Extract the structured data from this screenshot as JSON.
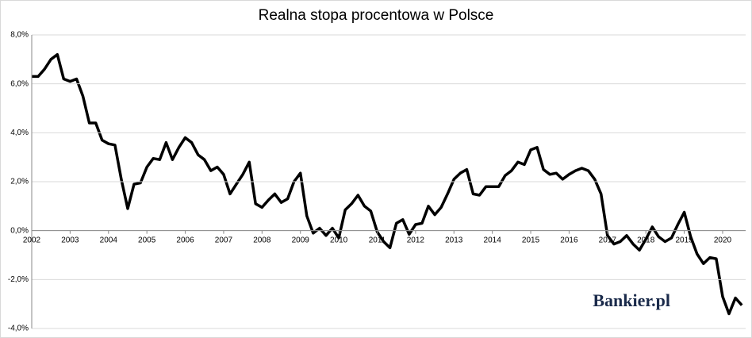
{
  "chart_data": {
    "type": "line",
    "title": "Realna stopa procentowa w Polsce",
    "watermark": "Bankier.pl",
    "x": [
      2002,
      2002.167,
      2002.333,
      2002.5,
      2002.667,
      2002.833,
      2003,
      2003.167,
      2003.333,
      2003.5,
      2003.667,
      2003.833,
      2004,
      2004.167,
      2004.333,
      2004.5,
      2004.667,
      2004.833,
      2005,
      2005.167,
      2005.333,
      2005.5,
      2005.667,
      2005.833,
      2006,
      2006.167,
      2006.333,
      2006.5,
      2006.667,
      2006.833,
      2007,
      2007.167,
      2007.333,
      2007.5,
      2007.667,
      2007.833,
      2008,
      2008.167,
      2008.333,
      2008.5,
      2008.667,
      2008.833,
      2009,
      2009.167,
      2009.333,
      2009.5,
      2009.667,
      2009.833,
      2010,
      2010.167,
      2010.333,
      2010.5,
      2010.667,
      2010.833,
      2011,
      2011.167,
      2011.333,
      2011.5,
      2011.667,
      2011.833,
      2012,
      2012.167,
      2012.333,
      2012.5,
      2012.667,
      2012.833,
      2013,
      2013.167,
      2013.333,
      2013.5,
      2013.667,
      2013.833,
      2014,
      2014.167,
      2014.333,
      2014.5,
      2014.667,
      2014.833,
      2015,
      2015.167,
      2015.333,
      2015.5,
      2015.667,
      2015.833,
      2016,
      2016.167,
      2016.333,
      2016.5,
      2016.667,
      2016.833,
      2017,
      2017.167,
      2017.333,
      2017.5,
      2017.667,
      2017.833,
      2018,
      2018.167,
      2018.333,
      2018.5,
      2018.667,
      2018.833,
      2019,
      2019.167,
      2019.333,
      2019.5,
      2019.667,
      2019.833,
      2020,
      2020.167,
      2020.333,
      2020.5
    ],
    "series": [
      {
        "name": "Realna stopa procentowa",
        "color": "#000000",
        "values": [
          6.3,
          6.3,
          6.6,
          7.0,
          7.2,
          6.2,
          6.1,
          6.2,
          5.5,
          4.4,
          4.4,
          3.7,
          3.55,
          3.5,
          2.1,
          0.9,
          1.9,
          1.95,
          2.6,
          2.95,
          2.9,
          3.6,
          2.9,
          3.4,
          3.8,
          3.6,
          3.1,
          2.9,
          2.45,
          2.6,
          2.3,
          1.5,
          1.9,
          2.3,
          2.8,
          1.1,
          0.95,
          1.25,
          1.5,
          1.15,
          1.3,
          2.0,
          2.35,
          0.6,
          -0.1,
          0.1,
          -0.2,
          0.1,
          -0.3,
          0.85,
          1.1,
          1.45,
          1.0,
          0.8,
          -0.05,
          -0.45,
          -0.7,
          0.3,
          0.45,
          -0.15,
          0.25,
          0.3,
          1.0,
          0.65,
          0.95,
          1.5,
          2.1,
          2.35,
          2.5,
          1.5,
          1.45,
          1.8,
          1.8,
          1.8,
          2.25,
          2.45,
          2.8,
          2.7,
          3.3,
          3.4,
          2.5,
          2.3,
          2.35,
          2.1,
          2.3,
          2.45,
          2.55,
          2.45,
          2.1,
          1.5,
          -0.2,
          -0.55,
          -0.45,
          -0.2,
          -0.55,
          -0.8,
          -0.35,
          0.15,
          -0.25,
          -0.45,
          -0.3,
          0.25,
          0.75,
          -0.25,
          -0.95,
          -1.35,
          -1.1,
          -1.15,
          -2.7,
          -3.4,
          -2.75,
          -3.05
        ]
      }
    ],
    "xlim": [
      2002,
      2020.6
    ],
    "xticks": [
      2002,
      2003,
      2004,
      2005,
      2006,
      2007,
      2008,
      2009,
      2010,
      2011,
      2012,
      2013,
      2014,
      2015,
      2016,
      2017,
      2018,
      2019,
      2020
    ],
    "ylim": [
      -4,
      8
    ],
    "yticks": [
      {
        "value": -4,
        "label": "-4,0%"
      },
      {
        "value": -2,
        "label": "-2,0%"
      },
      {
        "value": 0,
        "label": "0,0%"
      },
      {
        "value": 2,
        "label": "2,0%"
      },
      {
        "value": 4,
        "label": "4,0%"
      },
      {
        "value": 6,
        "label": "6,0%"
      },
      {
        "value": 8,
        "label": "8,0%"
      }
    ],
    "grid": true
  }
}
